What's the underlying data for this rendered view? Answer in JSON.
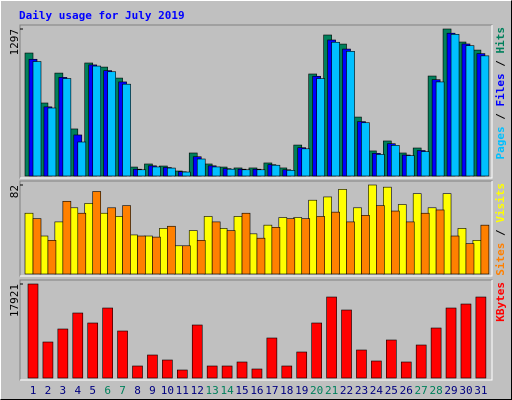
{
  "chart_data": [
    {
      "type": "bar",
      "title": "Daily usage for July 2019",
      "separator": " / ",
      "ylim": [
        0,
        1297
      ],
      "yticks": [
        1297
      ],
      "series": [
        {
          "name": "Hits",
          "color": "#00805c",
          "values": [
            1085,
            644,
            908,
            415,
            997,
            961,
            864,
            79,
            106,
            88,
            44,
            203,
            106,
            79,
            71,
            71,
            115,
            71,
            273,
            900,
            1244,
            1164,
            520,
            221,
            309,
            203,
            247,
            882,
            1297,
            1182,
            1111
          ]
        },
        {
          "name": "Files",
          "color": "#0000ff",
          "values": [
            1030,
            610,
            870,
            362,
            980,
            930,
            830,
            60,
            90,
            75,
            38,
            170,
            90,
            65,
            60,
            60,
            100,
            55,
            250,
            880,
            1200,
            1120,
            480,
            200,
            285,
            185,
            225,
            850,
            1260,
            1165,
            1080
          ]
        },
        {
          "name": "Pages",
          "color": "#00c0ff",
          "values": [
            1010,
            600,
            860,
            300,
            970,
            920,
            810,
            55,
            80,
            70,
            35,
            150,
            80,
            60,
            55,
            55,
            95,
            50,
            240,
            860,
            1180,
            1100,
            470,
            190,
            270,
            180,
            215,
            830,
            1250,
            1150,
            1060
          ]
        }
      ]
    },
    {
      "type": "bar",
      "separator": " / ",
      "ylim": [
        0,
        82
      ],
      "yticks": [
        82
      ],
      "series": [
        {
          "name": "Visits",
          "color": "#ffff00",
          "values": [
            56,
            35,
            48,
            61,
            65,
            56,
            53,
            36,
            35,
            42,
            26,
            40,
            53,
            42,
            53,
            37,
            45,
            52,
            52,
            68,
            71,
            78,
            61,
            82,
            80,
            64,
            74,
            61,
            74,
            42,
            31
          ]
        },
        {
          "name": "Sites",
          "color": "#ff8000",
          "values": [
            51,
            31,
            67,
            56,
            76,
            61,
            63,
            35,
            34,
            44,
            26,
            31,
            48,
            40,
            56,
            33,
            43,
            51,
            51,
            53,
            57,
            48,
            54,
            63,
            58,
            48,
            56,
            59,
            35,
            28,
            45
          ]
        }
      ]
    },
    {
      "type": "bar",
      "separator": " / ",
      "ylim": [
        0,
        17921
      ],
      "yticks": [
        17921
      ],
      "series": [
        {
          "name": "KBytes",
          "color": "#ff0000",
          "values": [
            17921,
            6862,
            9340,
            12389,
            10483,
            13342,
            8959,
            2287,
            4383,
            3430,
            1524,
            10102,
            2287,
            2287,
            3050,
            1715,
            7624,
            2287,
            4955,
            10483,
            15439,
            12961,
            5336,
            3240,
            7243,
            3050,
            6290,
            9530,
            13342,
            14104,
            15439
          ]
        }
      ],
      "categories": [
        "1",
        "2",
        "3",
        "4",
        "5",
        "6",
        "7",
        "8",
        "9",
        "10",
        "11",
        "12",
        "13",
        "14",
        "15",
        "16",
        "17",
        "18",
        "19",
        "20",
        "21",
        "22",
        "23",
        "24",
        "25",
        "26",
        "27",
        "28",
        "29",
        "30",
        "31"
      ],
      "category_colors": [
        "#000080",
        "#000080",
        "#000080",
        "#000080",
        "#000080",
        "#00805c",
        "#00805c",
        "#000080",
        "#000080",
        "#000080",
        "#000080",
        "#000080",
        "#00805c",
        "#00805c",
        "#000080",
        "#000080",
        "#000080",
        "#000080",
        "#000080",
        "#00805c",
        "#00805c",
        "#000080",
        "#000080",
        "#000080",
        "#000080",
        "#000080",
        "#00805c",
        "#00805c",
        "#000080",
        "#000080",
        "#000080"
      ]
    }
  ]
}
